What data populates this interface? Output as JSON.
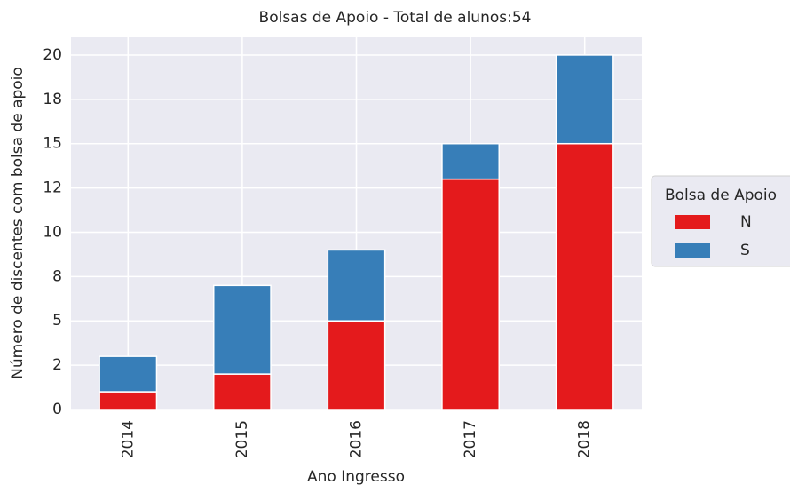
{
  "chart_data": {
    "type": "bar",
    "stacked": true,
    "title": "Bolsas de Apoio - Total de alunos:54",
    "x_label": "Ano Ingresso",
    "y_label": "Número de discentes com bolsa de apoio",
    "categories": [
      "2014",
      "2015",
      "2016",
      "2017",
      "2018"
    ],
    "series": [
      {
        "name": "N",
        "color": "#e41a1c",
        "values": [
          1,
          2,
          5,
          13,
          15
        ]
      },
      {
        "name": "S",
        "color": "#377eb8",
        "values": [
          2,
          5,
          4,
          2,
          5
        ]
      }
    ],
    "ylim": [
      0,
      21
    ],
    "yticks": [
      0,
      {
        "value": 2.5,
        "label": "2"
      },
      5,
      {
        "value": 7.5,
        "label": "8"
      },
      10,
      {
        "value": 12.5,
        "label": "12"
      },
      15,
      {
        "value": 17.5,
        "label": "18"
      },
      20
    ],
    "grid": true,
    "legend_title": "Bolsa de Apoio",
    "legend_position": "right"
  }
}
